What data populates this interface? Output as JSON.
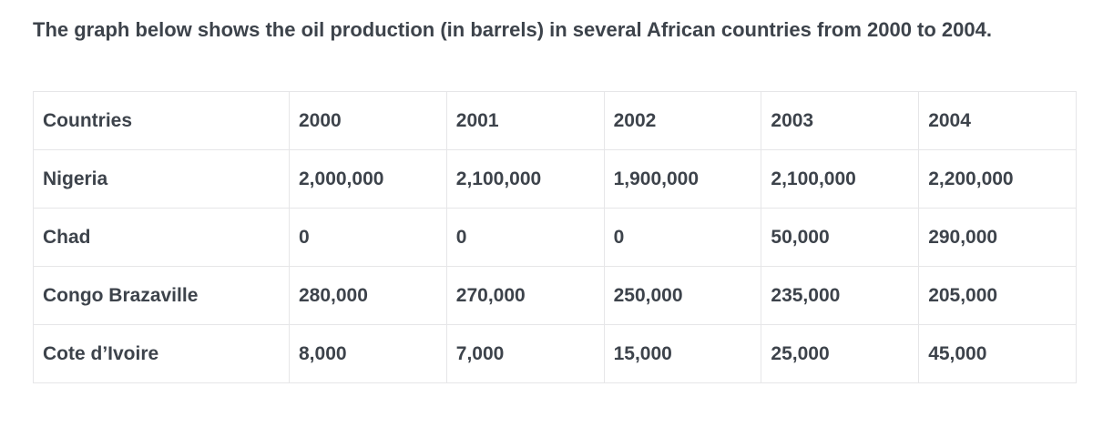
{
  "intro": {
    "text": "The graph below shows the oil production (in barrels) in several African countries from 2000 to 2004."
  },
  "colors": {
    "text": "#3d434b",
    "border": "#e6e6e8",
    "background": "#ffffff"
  },
  "chart_data": {
    "type": "table",
    "title": "The graph below shows the oil production (in barrels) in several African countries from 2000 to 2004.",
    "columns": [
      "Countries",
      "2000",
      "2001",
      "2002",
      "2003",
      "2004"
    ],
    "rows": [
      {
        "label": "Nigeria",
        "values": [
          "2,000,000",
          "2,100,000",
          "1,900,000",
          "2,100,000",
          "2,200,000"
        ]
      },
      {
        "label": "Chad",
        "values": [
          "0",
          "0",
          "0",
          "50,000",
          "290,000"
        ]
      },
      {
        "label": "Congo Brazaville",
        "values": [
          "280,000",
          "270,000",
          "250,000",
          "235,000",
          "205,000"
        ]
      },
      {
        "label": "Cote d’Ivoire",
        "values": [
          "8,000",
          "7,000",
          "15,000",
          "25,000",
          "45,000"
        ]
      }
    ]
  }
}
